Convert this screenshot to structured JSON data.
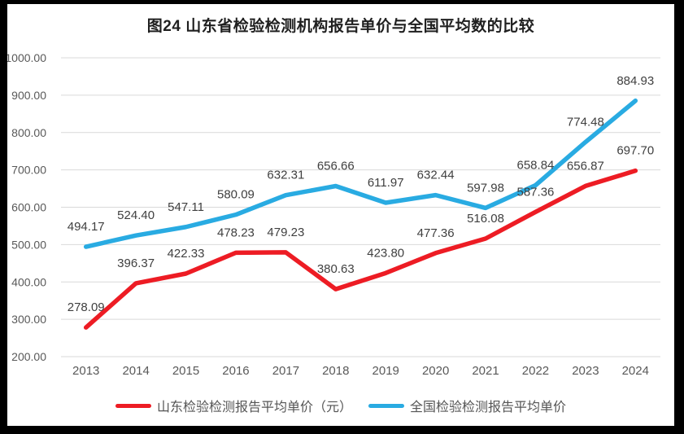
{
  "chart_data": {
    "type": "line",
    "title": "图24  山东省检验检测机构报告单价与全国平均数的比较",
    "categories": [
      "2013",
      "2014",
      "2015",
      "2016",
      "2017",
      "2018",
      "2019",
      "2020",
      "2021",
      "2022",
      "2023",
      "2024"
    ],
    "series": [
      {
        "id": "shandong",
        "name": "山东检验检测报告平均单价（元）",
        "color": "#ED1C24",
        "values": [
          278.09,
          396.37,
          422.33,
          478.23,
          479.23,
          380.63,
          423.8,
          477.36,
          516.08,
          587.36,
          656.87,
          697.7
        ]
      },
      {
        "id": "national",
        "name": "全国检验检测报告平均单价",
        "color": "#29ABE2",
        "values": [
          494.17,
          524.4,
          547.11,
          580.09,
          632.31,
          656.66,
          611.97,
          632.44,
          597.98,
          658.84,
          774.48,
          884.93
        ]
      }
    ],
    "ylim": [
      200,
      1000
    ],
    "yticks": [
      200,
      300,
      400,
      500,
      600,
      700,
      800,
      900,
      1000
    ],
    "ytick_format_decimals": 2,
    "grid": true,
    "legend_position": "bottom"
  },
  "colors": {
    "grid": "#D9D9D9",
    "axis_text": "#595959",
    "data_label_text": "#3F3F3F",
    "title_text": "#1F1F1F",
    "background": "#FFFFFF",
    "frame": "#000000"
  }
}
